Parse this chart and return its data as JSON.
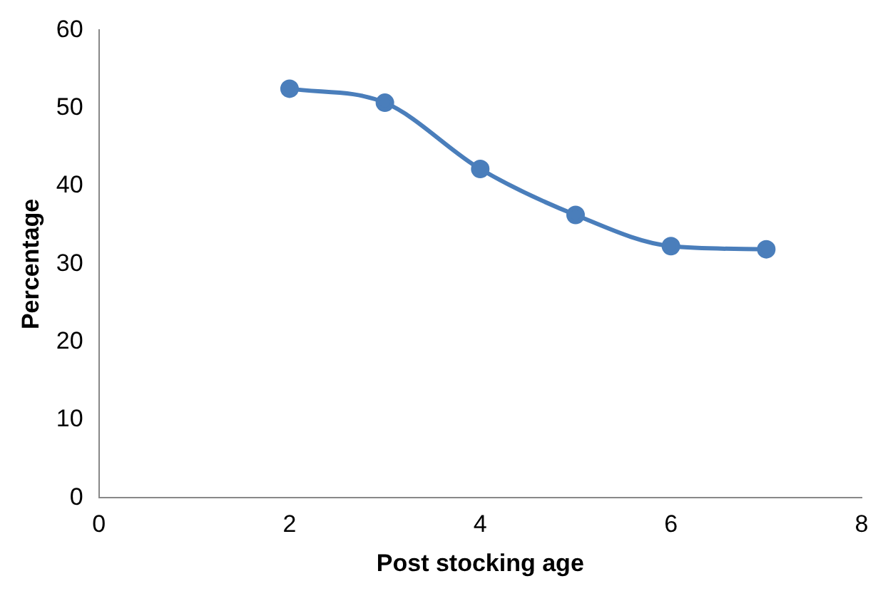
{
  "chart_data": {
    "type": "line",
    "xlabel": "Post stocking age",
    "ylabel": "Percentage",
    "x": [
      2,
      3,
      4,
      5,
      6,
      7
    ],
    "series": [
      {
        "color": "#4a7ebb",
        "values": [
          52.5,
          50.7,
          42.2,
          36.3,
          32.3,
          31.9
        ]
      }
    ],
    "xlim": [
      0,
      8
    ],
    "xticks": [
      0,
      2,
      4,
      6,
      8
    ],
    "ylim": [
      0,
      60
    ],
    "yticks": [
      0,
      10,
      20,
      30,
      40,
      50,
      60
    ],
    "grid": false,
    "legend": false,
    "marker": "circle",
    "line_style": "solid"
  }
}
